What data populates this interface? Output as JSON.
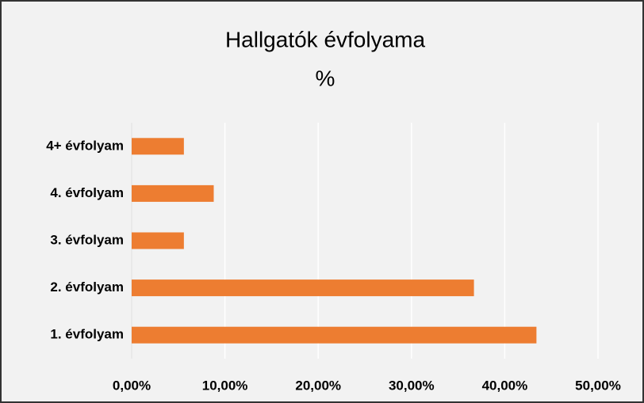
{
  "chart_data": {
    "type": "barh",
    "title": "Hallgatók évfolyama",
    "subtitle": "%",
    "categories": [
      "1. évfolyam",
      "2. évfolyam",
      "3. évfolyam",
      "4. évfolyam",
      "4+ évfolyam"
    ],
    "values": [
      43.4,
      36.7,
      5.6,
      8.8,
      5.6
    ],
    "color": "#ed7d31",
    "xlim": [
      0,
      50
    ],
    "xticks": [
      {
        "value": 0,
        "label": "0,00%"
      },
      {
        "value": 10,
        "label": "10,00%"
      },
      {
        "value": 20,
        "label": "20,00%"
      },
      {
        "value": 30,
        "label": "30,00%"
      },
      {
        "value": 40,
        "label": "40,00%"
      },
      {
        "value": 50,
        "label": "50,00%"
      }
    ],
    "grid": true
  }
}
